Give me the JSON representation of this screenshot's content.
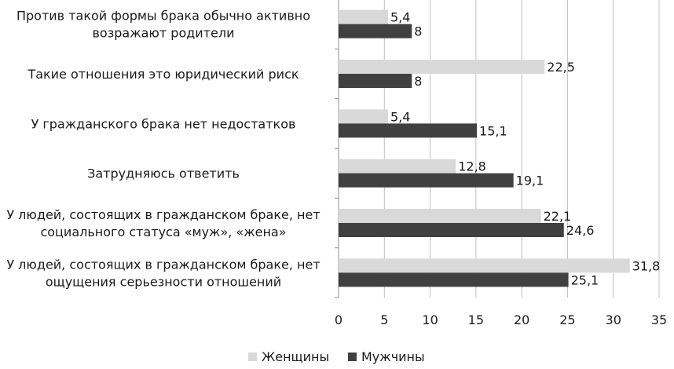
{
  "chart_data": {
    "type": "bar",
    "orientation": "horizontal",
    "categories": [
      [
        "Против такой формы брака обычно активно",
        "возражают родители"
      ],
      [
        "Такие отношения это юридический риск"
      ],
      [
        "У гражданского брака нет недостатков"
      ],
      [
        "Затрудняюсь ответить"
      ],
      [
        "У людей, состоящих в гражданском браке, нет",
        "социального статуса «муж», «жена»"
      ],
      [
        "У людей, состоящих в гражданском браке, нет",
        "ощущения серьезности отношений"
      ]
    ],
    "series": [
      {
        "name": "Женщины",
        "color": "#d9d9d9",
        "values": [
          5.4,
          22.5,
          5.4,
          12.8,
          22.1,
          31.8
        ],
        "labels": [
          "5,4",
          "22,5",
          "5,4",
          "12,8",
          "22,1",
          "31,8"
        ]
      },
      {
        "name": "Мужчины",
        "color": "#404040",
        "values": [
          8,
          8,
          15.1,
          19.1,
          24.6,
          25.1
        ],
        "labels": [
          "8",
          "8",
          "15,1",
          "19,1",
          "24,6",
          "25,1"
        ]
      }
    ],
    "xlim": [
      0,
      35
    ],
    "xticks": [
      0,
      5,
      10,
      15,
      20,
      25,
      30,
      35
    ],
    "grid": "vertical",
    "legend": "bottom",
    "title": "",
    "xlabel": "",
    "ylabel": ""
  }
}
